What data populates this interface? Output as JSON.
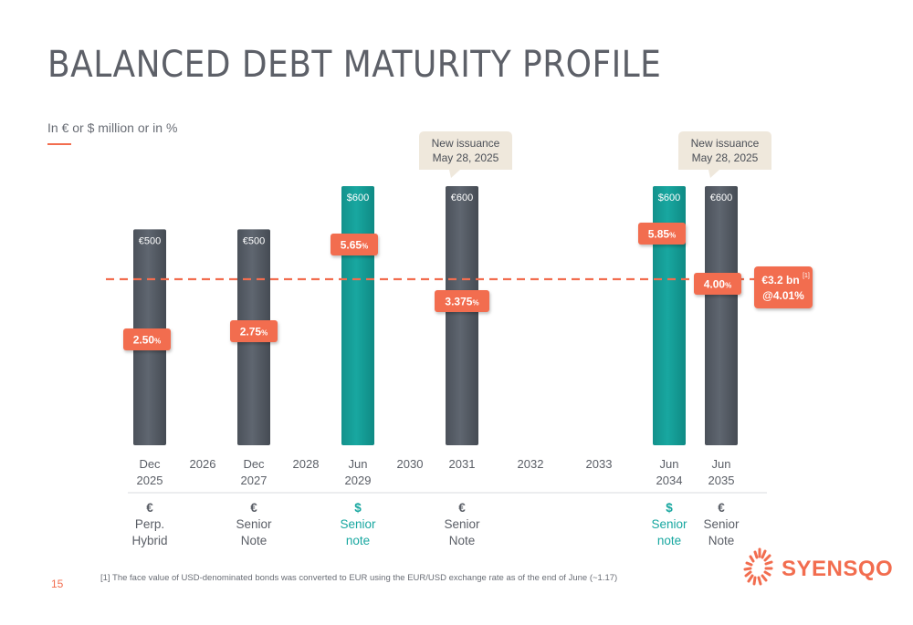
{
  "slide": {
    "title": "BALANCED DEBT MATURITY PROFILE",
    "subtitle": "In € or $ million or in %",
    "page_number": "15",
    "footnote": "[1] The face value of USD-denominated bonds was converted to EUR using the EUR/USD exchange rate as of the end of June (~1.17)",
    "logo_text": "SYENSQO"
  },
  "colors": {
    "eur_bar": "#5f6670",
    "usd_bar": "#18a7a0",
    "accent": "#f26d4f",
    "callout_bg": "#efe8dc"
  },
  "chart_data": {
    "type": "bar",
    "title": "",
    "ylabel": "",
    "xlabel": "",
    "ylim": [
      0,
      600
    ],
    "categories": [
      "Dec 2025",
      "2026",
      "Dec 2027",
      "2028",
      "Jun 2029",
      "2030",
      "2031",
      "2032",
      "2033",
      "Jun 2034",
      "Jun 2035"
    ],
    "tick_labels": [
      {
        "line1": "Dec",
        "line2": "2025"
      },
      {
        "line1": "2026",
        "line2": ""
      },
      {
        "line1": "Dec",
        "line2": "2027"
      },
      {
        "line1": "2028",
        "line2": ""
      },
      {
        "line1": "Jun",
        "line2": "2029"
      },
      {
        "line1": "2030",
        "line2": ""
      },
      {
        "line1": "2031",
        "line2": ""
      },
      {
        "line1": "2032",
        "line2": ""
      },
      {
        "line1": "2033",
        "line2": ""
      },
      {
        "line1": "Jun",
        "line2": "2034"
      },
      {
        "line1": "Jun",
        "line2": "2035"
      }
    ],
    "bars": [
      {
        "category": "Dec 2025",
        "currency": "EUR",
        "value": 500,
        "label": "€500",
        "rate": "2.50",
        "instrument": "Perp. Hybrid",
        "instrument_lines": [
          "Perp.",
          "Hybrid"
        ],
        "currency_symbol": "€"
      },
      {
        "category": "Dec 2027",
        "currency": "EUR",
        "value": 500,
        "label": "€500",
        "rate": "2.75",
        "instrument": "Senior Note",
        "instrument_lines": [
          "Senior",
          "Note"
        ],
        "currency_symbol": "€"
      },
      {
        "category": "Jun 2029",
        "currency": "USD",
        "value": 600,
        "label": "$600",
        "rate": "5.65",
        "instrument": "Senior note",
        "instrument_lines": [
          "Senior",
          "note"
        ],
        "currency_symbol": "$"
      },
      {
        "category": "2031",
        "currency": "EUR",
        "value": 600,
        "label": "€600",
        "rate": "3.375",
        "instrument": "Senior Note",
        "instrument_lines": [
          "Senior",
          "Note"
        ],
        "currency_symbol": "€",
        "new_issuance": true
      },
      {
        "category": "Jun 2034",
        "currency": "USD",
        "value": 600,
        "label": "$600",
        "rate": "5.85",
        "instrument": "Senior note",
        "instrument_lines": [
          "Senior",
          "note"
        ],
        "currency_symbol": "$"
      },
      {
        "category": "Jun 2035",
        "currency": "EUR",
        "value": 600,
        "label": "€600",
        "rate": "4.00",
        "instrument": "Senior Note",
        "instrument_lines": [
          "Senior",
          "Note"
        ],
        "currency_symbol": "€",
        "new_issuance": true
      }
    ],
    "rate_unit": "%",
    "average_rate": 4.01,
    "callout_text": "New issuance\nMay 28, 2025",
    "total_label": "€3.2 bn",
    "total_label_superscript": "[1]",
    "total_rate_label": "@4.01%"
  }
}
